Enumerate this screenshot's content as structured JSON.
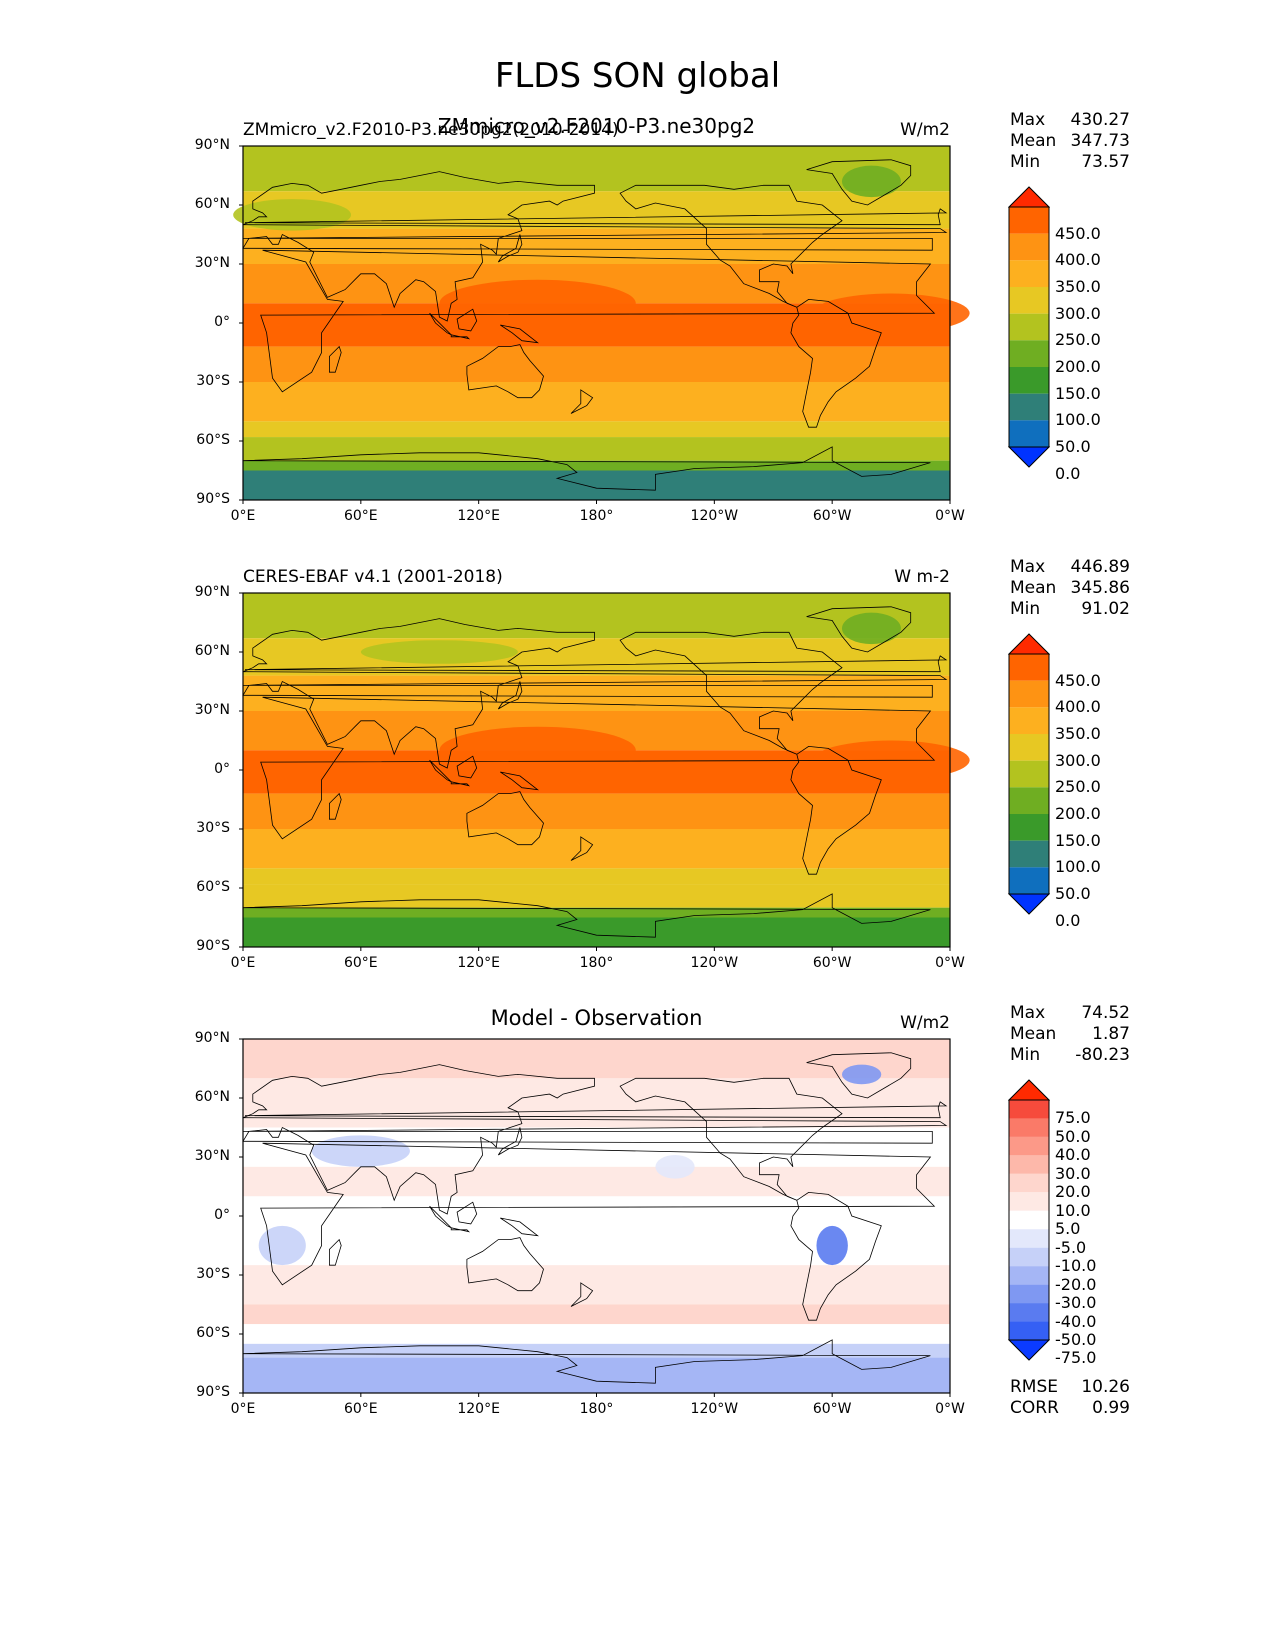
{
  "title": "FLDS SON global",
  "panels": [
    {
      "id": "model",
      "left_label": "ZMmicro_v2.F2010-P3.ne30pg2(2010-2014)",
      "center_label": "ZMmicro_v2.F2010-P3.ne30pg2",
      "units": "W/m2",
      "stats": [
        {
          "name": "Max",
          "value": "430.27"
        },
        {
          "name": "Mean",
          "value": "347.73"
        },
        {
          "name": "Min",
          "value": "73.57"
        }
      ],
      "colorbar": {
        "levels": [
          "450.0",
          "400.0",
          "350.0",
          "300.0",
          "250.0",
          "200.0",
          "150.0",
          "100.0",
          "50.0",
          "0.0"
        ],
        "colors": [
          "#ff2a00",
          "#ff6400",
          "#fe9313",
          "#fdb01f",
          "#e7c823",
          "#b3c31f",
          "#6fae22",
          "#3a9a2a",
          "#2f7f78",
          "#0f6fbe",
          "#0033ff"
        ]
      }
    },
    {
      "id": "obs",
      "left_label": "CERES-EBAF v4.1 (2001-2018)",
      "center_label": "",
      "units": "W m-2",
      "stats": [
        {
          "name": "Max",
          "value": "446.89"
        },
        {
          "name": "Mean",
          "value": "345.86"
        },
        {
          "name": "Min",
          "value": "91.02"
        }
      ],
      "colorbar": {
        "levels": [
          "450.0",
          "400.0",
          "350.0",
          "300.0",
          "250.0",
          "200.0",
          "150.0",
          "100.0",
          "50.0",
          "0.0"
        ],
        "colors": [
          "#ff2a00",
          "#ff6400",
          "#fe9313",
          "#fdb01f",
          "#e7c823",
          "#b3c31f",
          "#6fae22",
          "#3a9a2a",
          "#2f7f78",
          "#0f6fbe",
          "#0033ff"
        ]
      }
    },
    {
      "id": "diff",
      "left_label": "",
      "center_label": "Model - Observation",
      "units": "W/m2",
      "stats": [
        {
          "name": "Max",
          "value": "74.52"
        },
        {
          "name": "Mean",
          "value": "1.87"
        },
        {
          "name": "Min",
          "value": "-80.23"
        }
      ],
      "extra_stats": [
        {
          "name": "RMSE",
          "value": "10.26"
        },
        {
          "name": "CORR",
          "value": "0.99"
        }
      ],
      "colorbar": {
        "levels": [
          "75.0",
          "50.0",
          "40.0",
          "30.0",
          "20.0",
          "10.0",
          "5.0",
          "-5.0",
          "-10.0",
          "-20.0",
          "-30.0",
          "-40.0",
          "-50.0",
          "-75.0"
        ],
        "colors": [
          "#ff2a00",
          "#f64b3c",
          "#fa7a68",
          "#fc9988",
          "#fdb8aa",
          "#fed6cd",
          "#fee9e4",
          "#ffffff",
          "#e3e8fb",
          "#c6d1f8",
          "#a5b6f5",
          "#7f98f2",
          "#5a7bf0",
          "#3560f4",
          "#0b3bff"
        ]
      }
    }
  ],
  "axes": {
    "lat_ticks": [
      "90°N",
      "60°N",
      "30°N",
      "0°",
      "30°S",
      "60°S",
      "90°S"
    ],
    "lon_ticks": [
      "0°E",
      "60°E",
      "120°E",
      "180°",
      "120°W",
      "60°W",
      "0°W"
    ]
  }
}
